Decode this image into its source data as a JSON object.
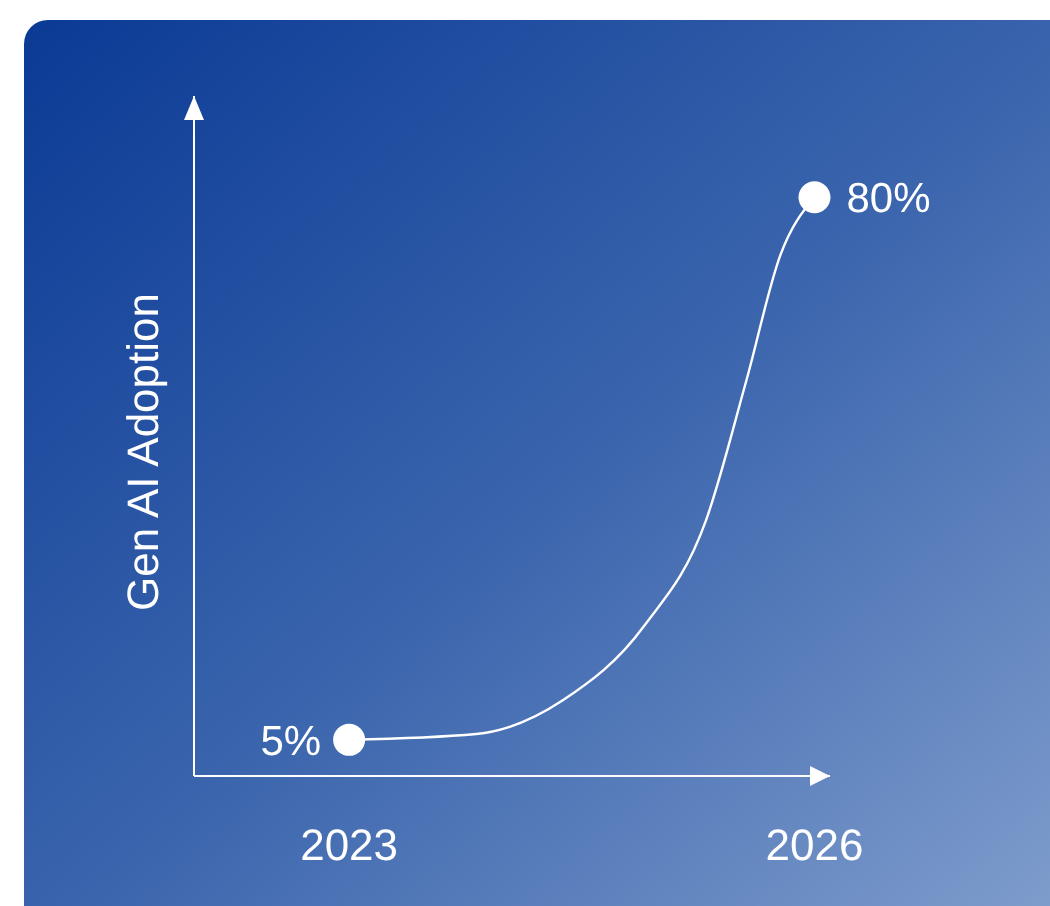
{
  "chart_data": {
    "type": "line",
    "ylabel": "Gen AI Adoption",
    "xlim": [
      2022,
      2026.1
    ],
    "ylim": [
      0,
      94
    ],
    "xticks": [
      2023,
      2026
    ],
    "tick_labels": "x",
    "series": [
      {
        "color": "#ffffff",
        "marker": "none",
        "x": [
          2023,
          2023.82,
          2024.38,
          2024.9,
          2025.3,
          2025.56,
          2025.78,
          2026
        ],
        "values": [
          5,
          5.8,
          10.5,
          20.7,
          35.3,
          54.6,
          72,
          80
        ]
      },
      {
        "type": "scatter",
        "color": "#ffffff",
        "marker": "circle",
        "x": [
          2023,
          2026
        ],
        "values": [
          5,
          80
        ],
        "value_labels": [
          "5%",
          "80%"
        ]
      }
    ]
  }
}
